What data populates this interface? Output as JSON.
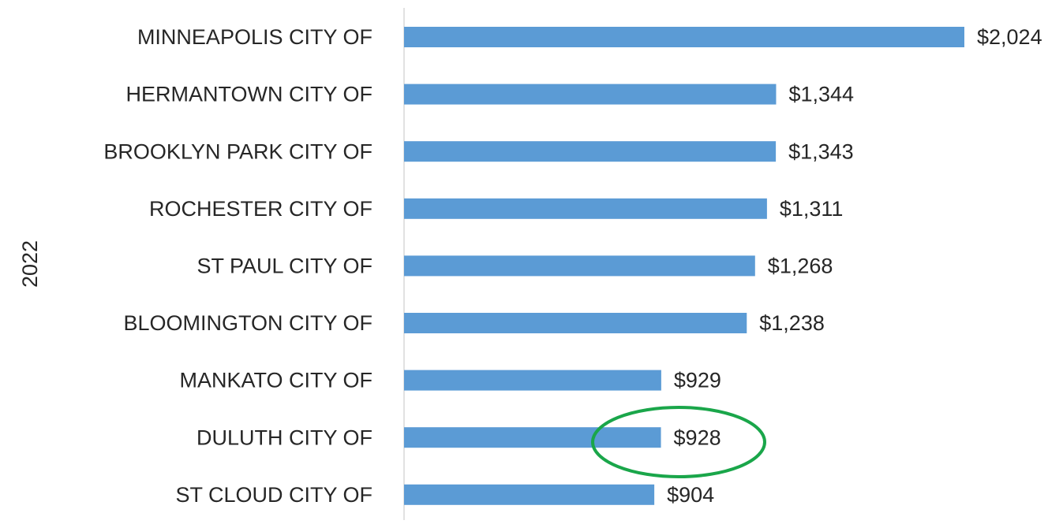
{
  "chart_data": {
    "type": "bar",
    "orientation": "horizontal",
    "group_label": "2022",
    "categories": [
      "MINNEAPOLIS CITY OF",
      "HERMANTOWN CITY OF",
      "BROOKLYN PARK CITY OF",
      "ROCHESTER CITY OF",
      "ST PAUL CITY OF",
      "BLOOMINGTON CITY OF",
      "MANKATO CITY OF",
      "DULUTH CITY OF",
      "ST CLOUD CITY OF"
    ],
    "values": [
      2024,
      1344,
      1343,
      1311,
      1268,
      1238,
      929,
      928,
      904
    ],
    "value_labels": [
      "$2,024",
      "$1,344",
      "$1,343",
      "$1,311",
      "$1,268",
      "$1,238",
      "$929",
      "$928",
      "$904"
    ],
    "color": "#5b9bd5"
  }
}
